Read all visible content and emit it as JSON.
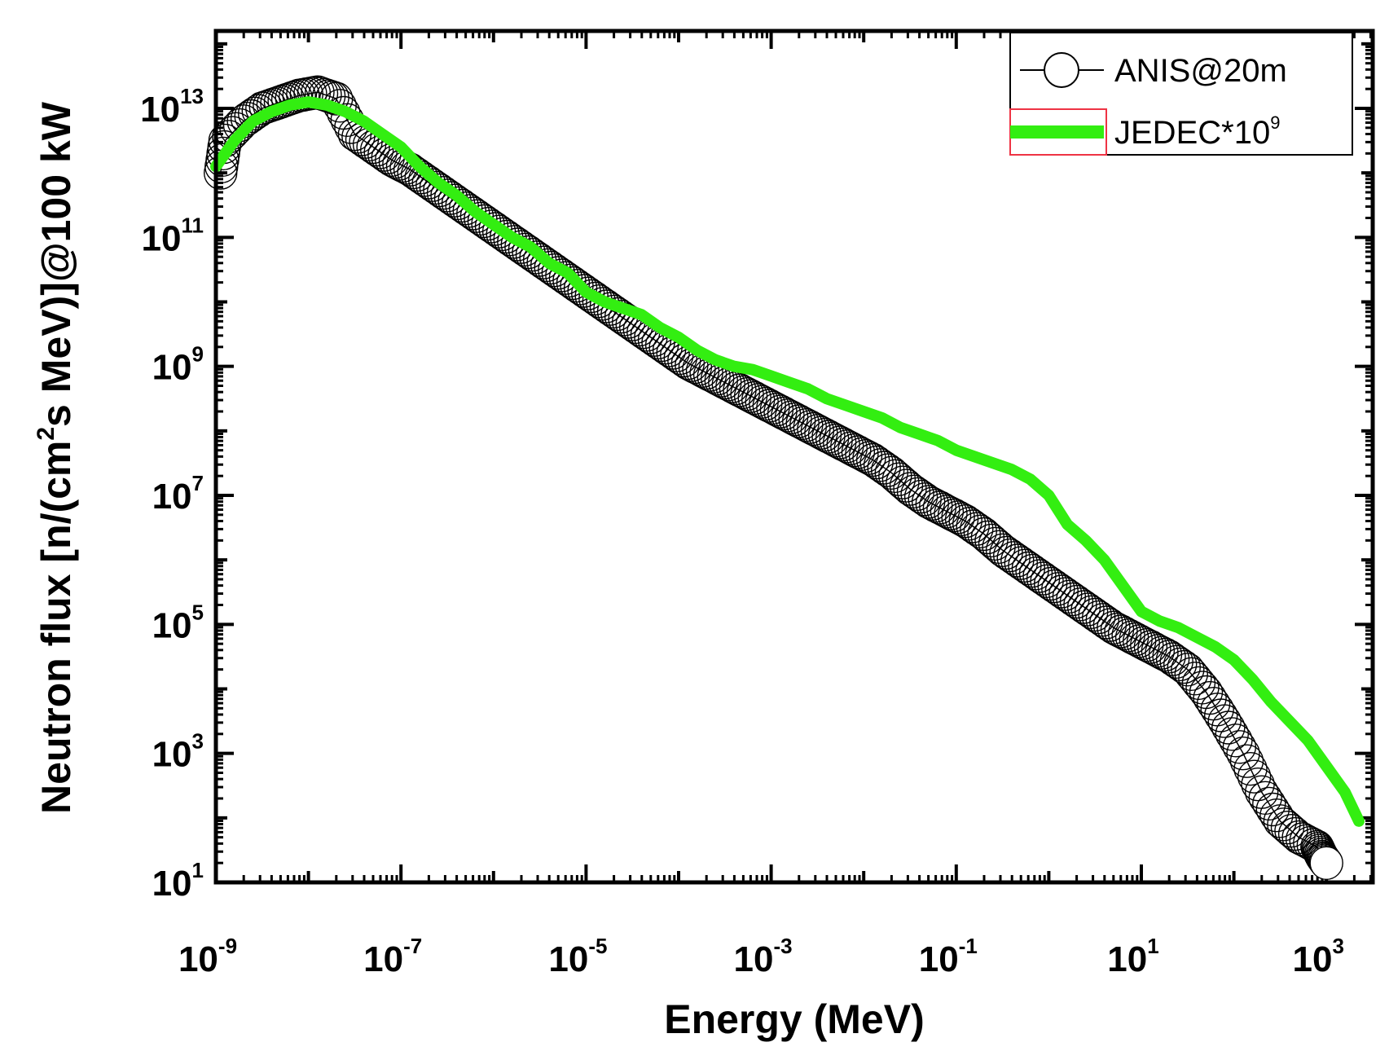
{
  "chart_data": {
    "type": "line",
    "title": "",
    "xlabel": "Energy (MeV)",
    "ylabel_parts": [
      "Neutron flux [n/(cm",
      "2",
      "s MeV)]@100 kW"
    ],
    "x_scale": "log",
    "y_scale": "log",
    "xlim_log10": [
      -9,
      3.5
    ],
    "ylim_log10": [
      1,
      14.2
    ],
    "x_ticks": [
      {
        "base": "10",
        "exp": "-9",
        "log": -9
      },
      {
        "base": "10",
        "exp": "-7",
        "log": -7
      },
      {
        "base": "10",
        "exp": "-5",
        "log": -5
      },
      {
        "base": "10",
        "exp": "-3",
        "log": -3
      },
      {
        "base": "10",
        "exp": "-1",
        "log": -1
      },
      {
        "base": "10",
        "exp": "1",
        "log": 1
      },
      {
        "base": "10",
        "exp": "3",
        "log": 3
      }
    ],
    "y_ticks": [
      {
        "base": "10",
        "exp": "1",
        "log": 1
      },
      {
        "base": "10",
        "exp": "3",
        "log": 3
      },
      {
        "base": "10",
        "exp": "5",
        "log": 5
      },
      {
        "base": "10",
        "exp": "7",
        "log": 7
      },
      {
        "base": "10",
        "exp": "9",
        "log": 9
      },
      {
        "base": "10",
        "exp": "11",
        "log": 11
      },
      {
        "base": "10",
        "exp": "13",
        "log": 13
      }
    ],
    "legend_position": "top-right",
    "series": [
      {
        "name": "ANIS@20m",
        "marker": "open-circle",
        "color": "#000000",
        "x_log10": [
          -8.95,
          -8.9,
          -8.7,
          -8.5,
          -8.3,
          -8.1,
          -7.9,
          -7.7,
          -7.5,
          -7.3,
          -7.1,
          -6.9,
          -6.7,
          -6.5,
          -6.3,
          -6.1,
          -5.9,
          -5.7,
          -5.5,
          -5.3,
          -5.1,
          -4.9,
          -4.7,
          -4.5,
          -4.3,
          -4.1,
          -3.9,
          -3.7,
          -3.5,
          -3.3,
          -3.1,
          -2.9,
          -2.7,
          -2.5,
          -2.3,
          -2.1,
          -1.9,
          -1.7,
          -1.5,
          -1.3,
          -1.1,
          -0.9,
          -0.7,
          -0.5,
          -0.3,
          -0.1,
          0.1,
          0.3,
          0.5,
          0.7,
          0.9,
          1.1,
          1.3,
          1.5,
          1.7,
          1.9,
          2.1,
          2.3,
          2.5,
          2.7,
          2.9,
          2.95,
          3.0
        ],
        "y_log10": [
          12.0,
          12.5,
          12.8,
          13.0,
          13.1,
          13.2,
          13.25,
          13.15,
          12.6,
          12.4,
          12.2,
          12.05,
          11.85,
          11.65,
          11.45,
          11.25,
          11.05,
          10.85,
          10.65,
          10.45,
          10.25,
          10.05,
          9.85,
          9.65,
          9.45,
          9.25,
          9.05,
          8.9,
          8.75,
          8.6,
          8.45,
          8.3,
          8.15,
          8.0,
          7.85,
          7.7,
          7.55,
          7.35,
          7.1,
          6.9,
          6.75,
          6.6,
          6.4,
          6.15,
          5.95,
          5.75,
          5.55,
          5.35,
          5.15,
          4.95,
          4.8,
          4.65,
          4.5,
          4.3,
          3.95,
          3.5,
          3.0,
          2.4,
          1.95,
          1.7,
          1.55,
          1.4,
          1.3
        ]
      },
      {
        "name": "JEDEC*10^9",
        "legend_base": "JEDEC*10",
        "legend_exp": "9",
        "color": "#33ee11",
        "x_log10": [
          -9.0,
          -8.8,
          -8.6,
          -8.4,
          -8.2,
          -8.0,
          -7.8,
          -7.6,
          -7.4,
          -7.2,
          -7.0,
          -6.8,
          -6.6,
          -6.4,
          -6.2,
          -6.0,
          -5.8,
          -5.6,
          -5.4,
          -5.2,
          -5.0,
          -4.8,
          -4.6,
          -4.4,
          -4.2,
          -4.0,
          -3.8,
          -3.6,
          -3.4,
          -3.2,
          -3.0,
          -2.8,
          -2.6,
          -2.4,
          -2.2,
          -2.0,
          -1.8,
          -1.6,
          -1.4,
          -1.2,
          -1.0,
          -0.8,
          -0.6,
          -0.4,
          -0.2,
          0.0,
          0.2,
          0.4,
          0.6,
          0.8,
          1.0,
          1.2,
          1.4,
          1.6,
          1.8,
          2.0,
          2.2,
          2.4,
          2.6,
          2.8,
          3.0,
          3.2,
          3.35
        ],
        "y_log10": [
          12.1,
          12.5,
          12.8,
          12.95,
          13.05,
          13.1,
          13.05,
          12.95,
          12.8,
          12.6,
          12.4,
          12.1,
          11.85,
          11.65,
          11.4,
          11.2,
          11.0,
          10.85,
          10.6,
          10.45,
          10.15,
          10.0,
          9.9,
          9.8,
          9.6,
          9.45,
          9.25,
          9.1,
          9.0,
          8.95,
          8.85,
          8.75,
          8.65,
          8.5,
          8.4,
          8.3,
          8.2,
          8.05,
          7.95,
          7.85,
          7.7,
          7.6,
          7.5,
          7.4,
          7.25,
          7.0,
          6.55,
          6.3,
          6.0,
          5.6,
          5.2,
          5.05,
          4.95,
          4.8,
          4.65,
          4.45,
          4.15,
          3.8,
          3.5,
          3.2,
          2.8,
          2.4,
          1.95
        ]
      }
    ]
  }
}
